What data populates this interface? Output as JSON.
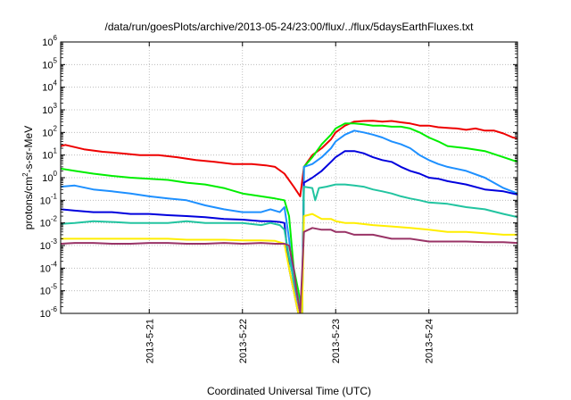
{
  "chart_data": {
    "type": "line",
    "title": "/data/run/goesPlots/archive/2013-05-24/23:00/flux/../flux/5daysEarthFluxes.txt",
    "xlabel": "Coordinated Universal Time (UTC)",
    "ylabel": {
      "base": "protons/cm",
      "sup": "2",
      "rest": "-s-sr-MeV"
    },
    "xlim": [
      20.05,
      24.95
    ],
    "ylim_exponents": [
      -6,
      6
    ],
    "y_scale": "log",
    "grid": true,
    "x_ticks": [
      {
        "value": 21,
        "label": "2013-5-21"
      },
      {
        "value": 22,
        "label": "2013-5-22"
      },
      {
        "value": 23,
        "label": "2013-5-23"
      },
      {
        "value": 24,
        "label": "2013-5-24"
      }
    ],
    "y_ticks": [
      {
        "exp": 6,
        "base": "10",
        "sup": "6"
      },
      {
        "exp": 5,
        "base": "10",
        "sup": "5"
      },
      {
        "exp": 4,
        "base": "10",
        "sup": "4"
      },
      {
        "exp": 3,
        "base": "10",
        "sup": "3"
      },
      {
        "exp": 2,
        "base": "10",
        "sup": "2"
      },
      {
        "exp": 1,
        "base": "10",
        "sup": "1"
      },
      {
        "exp": 0,
        "base": "10",
        "sup": "0"
      },
      {
        "exp": -1,
        "base": "10",
        "sup": "-1"
      },
      {
        "exp": -2,
        "base": "10",
        "sup": "-2"
      },
      {
        "exp": -3,
        "base": "10",
        "sup": "-3"
      },
      {
        "exp": -4,
        "base": "10",
        "sup": "-4"
      },
      {
        "exp": -5,
        "base": "10",
        "sup": "-5"
      },
      {
        "exp": -6,
        "base": "10",
        "sup": "-6"
      }
    ],
    "series": [
      {
        "color": "#ee0000",
        "x": [
          20.05,
          20.1,
          20.3,
          20.5,
          20.7,
          20.9,
          21.1,
          21.3,
          21.5,
          21.7,
          21.9,
          22.1,
          22.25,
          22.35,
          22.45,
          22.55,
          22.62,
          22.66,
          22.75,
          22.85,
          22.95,
          23.0,
          23.1,
          23.2,
          23.3,
          23.4,
          23.5,
          23.6,
          23.7,
          23.8,
          23.9,
          24.0,
          24.1,
          24.2,
          24.3,
          24.4,
          24.5,
          24.6,
          24.7,
          24.8,
          24.9,
          24.95
        ],
        "y": [
          25,
          28,
          18,
          14,
          12,
          10,
          10,
          8,
          6,
          5,
          4,
          4,
          3.5,
          3,
          1.5,
          0.4,
          0.15,
          3,
          10,
          20,
          50,
          100,
          200,
          300,
          320,
          330,
          300,
          320,
          280,
          250,
          200,
          200,
          170,
          160,
          150,
          130,
          150,
          120,
          120,
          90,
          60,
          55
        ]
      },
      {
        "color": "#00ee00",
        "x": [
          20.05,
          20.2,
          20.4,
          20.6,
          20.8,
          21.0,
          21.2,
          21.4,
          21.6,
          21.8,
          22.0,
          22.2,
          22.35,
          22.45,
          22.5,
          22.55,
          22.6,
          22.64,
          22.66,
          22.75,
          22.85,
          22.95,
          23.0,
          23.1,
          23.2,
          23.3,
          23.4,
          23.5,
          23.6,
          23.7,
          23.8,
          23.9,
          24.0,
          24.1,
          24.2,
          24.4,
          24.6,
          24.8,
          24.95
        ],
        "y": [
          2.5,
          2.0,
          1.5,
          1.2,
          1.0,
          0.9,
          0.8,
          0.6,
          0.5,
          0.35,
          0.2,
          0.15,
          0.12,
          0.1,
          0.02,
          0.0001,
          1e-05,
          1e-06,
          3,
          8,
          30,
          80,
          150,
          250,
          250,
          230,
          200,
          200,
          180,
          180,
          150,
          100,
          60,
          40,
          25,
          20,
          15,
          8,
          5
        ]
      },
      {
        "color": "#1e90ff",
        "x": [
          20.05,
          20.2,
          20.4,
          20.6,
          20.8,
          21.0,
          21.2,
          21.4,
          21.6,
          21.8,
          22.0,
          22.2,
          22.3,
          22.4,
          22.45,
          22.5,
          22.55,
          22.6,
          22.64,
          22.66,
          22.75,
          22.85,
          22.95,
          23.0,
          23.1,
          23.2,
          23.3,
          23.4,
          23.5,
          23.6,
          23.7,
          23.8,
          23.9,
          24.0,
          24.1,
          24.2,
          24.4,
          24.6,
          24.8,
          24.95
        ],
        "y": [
          0.4,
          0.45,
          0.3,
          0.25,
          0.2,
          0.15,
          0.12,
          0.1,
          0.06,
          0.04,
          0.03,
          0.03,
          0.04,
          0.03,
          0.05,
          0.002,
          2e-05,
          1e-06,
          1e-06,
          3,
          4,
          8,
          20,
          40,
          80,
          120,
          100,
          80,
          60,
          40,
          30,
          20,
          10,
          6,
          4,
          3,
          2,
          1,
          0.35,
          0.2
        ]
      },
      {
        "color": "#0000dd",
        "x": [
          20.05,
          20.2,
          20.4,
          20.6,
          20.8,
          21.0,
          21.2,
          21.4,
          21.6,
          21.8,
          22.0,
          22.2,
          22.3,
          22.4,
          22.45,
          22.5,
          22.55,
          22.6,
          22.64,
          22.66,
          22.75,
          22.85,
          22.95,
          23.0,
          23.1,
          23.2,
          23.3,
          23.4,
          23.5,
          23.6,
          23.7,
          23.8,
          23.9,
          24.0,
          24.1,
          24.2,
          24.4,
          24.6,
          24.8,
          24.95
        ],
        "y": [
          0.04,
          0.035,
          0.03,
          0.03,
          0.025,
          0.025,
          0.022,
          0.02,
          0.018,
          0.015,
          0.014,
          0.012,
          0.012,
          0.011,
          0.01,
          0.0001,
          1e-05,
          1e-06,
          1e-06,
          0.6,
          1.0,
          2,
          5,
          8,
          15,
          15,
          12,
          8,
          6,
          5,
          3,
          2,
          1.5,
          1.0,
          0.9,
          0.7,
          0.5,
          0.3,
          0.25,
          0.18
        ]
      },
      {
        "color": "#22c4a0",
        "x": [
          20.05,
          20.2,
          20.4,
          20.6,
          20.8,
          21.0,
          21.2,
          21.4,
          21.6,
          21.8,
          22.0,
          22.2,
          22.3,
          22.4,
          22.45,
          22.5,
          22.55,
          22.6,
          22.64,
          22.66,
          22.75,
          22.78,
          22.82,
          22.9,
          23.0,
          23.1,
          23.2,
          23.3,
          23.4,
          23.5,
          23.6,
          23.7,
          23.8,
          23.9,
          24.0,
          24.2,
          24.4,
          24.6,
          24.8,
          24.95
        ],
        "y": [
          0.009,
          0.01,
          0.012,
          0.011,
          0.01,
          0.01,
          0.01,
          0.012,
          0.01,
          0.01,
          0.01,
          0.008,
          0.01,
          0.008,
          0.005,
          0.0003,
          3e-05,
          5e-06,
          1e-06,
          0.4,
          0.35,
          0.1,
          0.35,
          0.4,
          0.5,
          0.5,
          0.45,
          0.4,
          0.3,
          0.25,
          0.2,
          0.15,
          0.12,
          0.1,
          0.08,
          0.07,
          0.05,
          0.04,
          0.025,
          0.018
        ]
      },
      {
        "color": "#ffee00",
        "x": [
          20.05,
          20.2,
          20.4,
          20.6,
          20.8,
          21.0,
          21.2,
          21.4,
          21.6,
          21.8,
          22.0,
          22.2,
          22.35,
          22.45,
          22.5,
          22.55,
          22.6,
          22.64,
          22.66,
          22.75,
          22.85,
          22.95,
          23.0,
          23.1,
          23.2,
          23.4,
          23.6,
          23.8,
          24.0,
          24.2,
          24.4,
          24.6,
          24.8,
          24.95
        ],
        "y": [
          0.002,
          0.002,
          0.002,
          0.002,
          0.002,
          0.002,
          0.002,
          0.0018,
          0.0018,
          0.0018,
          0.0017,
          0.0017,
          0.0016,
          0.0012,
          0.0001,
          1e-05,
          1e-06,
          1e-06,
          0.02,
          0.025,
          0.015,
          0.015,
          0.012,
          0.01,
          0.01,
          0.008,
          0.007,
          0.006,
          0.005,
          0.004,
          0.004,
          0.0035,
          0.003,
          0.003
        ]
      },
      {
        "color": "#993366",
        "x": [
          20.05,
          20.2,
          20.4,
          20.6,
          20.8,
          21.0,
          21.2,
          21.4,
          21.6,
          21.8,
          22.0,
          22.2,
          22.35,
          22.45,
          22.5,
          22.55,
          22.58,
          22.62,
          22.66,
          22.75,
          22.85,
          22.95,
          23.0,
          23.1,
          23.2,
          23.4,
          23.6,
          23.8,
          24.0,
          24.2,
          24.4,
          24.6,
          24.8,
          24.95
        ],
        "y": [
          0.0012,
          0.0013,
          0.0013,
          0.0012,
          0.0012,
          0.0013,
          0.0013,
          0.0012,
          0.0012,
          0.0013,
          0.0012,
          0.0013,
          0.0012,
          0.0012,
          0.001,
          0.0001,
          1e-05,
          1e-06,
          0.004,
          0.006,
          0.005,
          0.005,
          0.004,
          0.004,
          0.003,
          0.003,
          0.002,
          0.002,
          0.0015,
          0.0015,
          0.0015,
          0.0014,
          0.0014,
          0.0013
        ]
      }
    ]
  }
}
